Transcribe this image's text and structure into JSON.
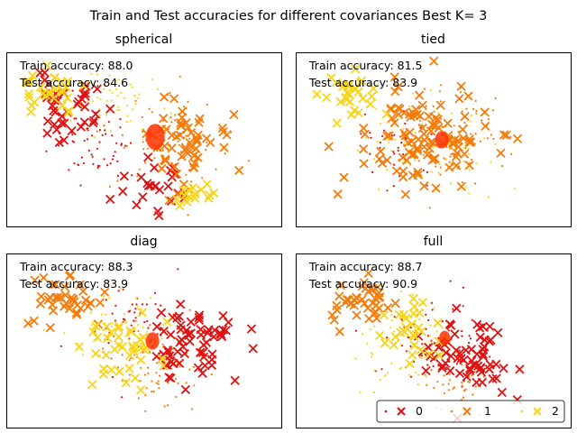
{
  "title": "Train and Test accuracies for different covariances Best K= 3",
  "colors": {
    "class_0": "#e01010",
    "class_1": "#f57c0a",
    "class_2": "#f7d418",
    "ellipse": "#ff3300"
  },
  "legend": {
    "entries": [
      {
        "label": "0",
        "class": 0
      },
      {
        "label": "1",
        "class": 1
      },
      {
        "label": "2",
        "class": 2
      }
    ]
  },
  "chart_data": [
    {
      "type": "scatter",
      "title": "spherical",
      "train_accuracy_label": "Train accuracy: 88.0",
      "test_accuracy_label": "Test accuracy: 84.6",
      "train_accuracy": 88.0,
      "test_accuracy": 84.6,
      "xlim": [
        0,
        10
      ],
      "ylim": [
        0,
        6
      ],
      "clusters": [
        {
          "class": 0,
          "center": [
            2.3,
            4.1
          ],
          "spread": [
            1.2,
            0.9
          ],
          "count": 40,
          "seed": 11
        },
        {
          "class": 0,
          "center": [
            5.2,
            1.4
          ],
          "spread": [
            1.1,
            0.7
          ],
          "count": 25,
          "seed": 12
        },
        {
          "class": 1,
          "center": [
            6.3,
            2.9
          ],
          "spread": [
            1.4,
            1.2
          ],
          "count": 55,
          "seed": 13
        },
        {
          "class": 2,
          "center": [
            1.6,
            4.6
          ],
          "spread": [
            0.9,
            0.7
          ],
          "count": 30,
          "seed": 14
        },
        {
          "class": 2,
          "center": [
            6.8,
            1.1
          ],
          "spread": [
            0.6,
            0.5
          ],
          "count": 15,
          "seed": 15
        }
      ],
      "test_points": [
        {
          "class": 0,
          "center": [
            3.2,
            2.8
          ],
          "spread": [
            1.3,
            1.2
          ],
          "count": 60,
          "seed": 21
        },
        {
          "class": 1,
          "center": [
            5.8,
            3.0
          ],
          "spread": [
            1.6,
            1.3
          ],
          "count": 90,
          "seed": 22
        },
        {
          "class": 2,
          "center": [
            3.6,
            4.3
          ],
          "spread": [
            1.8,
            1.1
          ],
          "count": 60,
          "seed": 23
        }
      ],
      "ellipses": [
        {
          "center": [
            5.4,
            3.1
          ],
          "rx": 0.35,
          "ry": 0.45
        }
      ]
    },
    {
      "type": "scatter",
      "title": "tied",
      "train_accuracy_label": "Train accuracy: 81.5",
      "test_accuracy_label": "Test accuracy: 83.9",
      "train_accuracy": 81.5,
      "test_accuracy": 83.9,
      "xlim": [
        0,
        10
      ],
      "ylim": [
        0,
        6
      ],
      "clusters": [
        {
          "class": 1,
          "center": [
            4.6,
            3.1
          ],
          "spread": [
            2.0,
            1.4
          ],
          "count": 110,
          "seed": 31
        },
        {
          "class": 2,
          "center": [
            2.1,
            4.6
          ],
          "spread": [
            1.0,
            0.6
          ],
          "count": 30,
          "seed": 32
        }
      ],
      "test_points": [
        {
          "class": 0,
          "center": [
            4.0,
            2.8
          ],
          "spread": [
            1.3,
            1.2
          ],
          "count": 45,
          "seed": 41
        },
        {
          "class": 1,
          "center": [
            5.5,
            3.2
          ],
          "spread": [
            1.6,
            1.3
          ],
          "count": 90,
          "seed": 42
        },
        {
          "class": 2,
          "center": [
            5.0,
            2.5
          ],
          "spread": [
            2.2,
            1.6
          ],
          "count": 70,
          "seed": 43
        }
      ],
      "ellipses": [
        {
          "center": [
            5.3,
            3.0
          ],
          "rx": 0.25,
          "ry": 0.3
        }
      ]
    },
    {
      "type": "scatter",
      "title": "diag",
      "train_accuracy_label": "Train accuracy: 88.3",
      "test_accuracy_label": "Test accuracy: 83.9",
      "train_accuracy": 88.3,
      "test_accuracy": 83.9,
      "xlim": [
        0,
        10
      ],
      "ylim": [
        0,
        6
      ],
      "clusters": [
        {
          "class": 0,
          "center": [
            6.7,
            2.9
          ],
          "spread": [
            1.3,
            1.1
          ],
          "count": 65,
          "seed": 51
        },
        {
          "class": 1,
          "center": [
            2.4,
            4.4
          ],
          "spread": [
            1.1,
            0.8
          ],
          "count": 40,
          "seed": 52
        },
        {
          "class": 2,
          "center": [
            4.2,
            2.6
          ],
          "spread": [
            1.2,
            1.0
          ],
          "count": 40,
          "seed": 53
        }
      ],
      "test_points": [
        {
          "class": 0,
          "center": [
            4.5,
            3.7
          ],
          "spread": [
            1.6,
            1.3
          ],
          "count": 60,
          "seed": 61
        },
        {
          "class": 1,
          "center": [
            5.5,
            2.2
          ],
          "spread": [
            1.6,
            1.5
          ],
          "count": 80,
          "seed": 62
        },
        {
          "class": 2,
          "center": [
            4.0,
            3.5
          ],
          "spread": [
            1.4,
            1.1
          ],
          "count": 50,
          "seed": 63
        }
      ],
      "ellipses": [
        {
          "center": [
            5.3,
            3.0
          ],
          "rx": 0.25,
          "ry": 0.3
        }
      ]
    },
    {
      "type": "scatter",
      "title": "full",
      "train_accuracy_label": "Train accuracy: 88.7",
      "test_accuracy_label": "Test accuracy: 90.9",
      "train_accuracy": 88.7,
      "test_accuracy": 90.9,
      "xlim": [
        0,
        10
      ],
      "ylim": [
        0,
        6
      ],
      "clusters": [
        {
          "class": 0,
          "center": [
            6.2,
            2.5
          ],
          "spread": [
            1.4,
            1.2
          ],
          "count": 65,
          "seed": 71
        },
        {
          "class": 1,
          "center": [
            2.3,
            4.3
          ],
          "spread": [
            1.1,
            0.8
          ],
          "count": 40,
          "seed": 72
        },
        {
          "class": 2,
          "center": [
            4.2,
            3.3
          ],
          "spread": [
            1.0,
            0.9
          ],
          "count": 30,
          "seed": 73
        }
      ],
      "test_points": [
        {
          "class": 0,
          "center": [
            5.0,
            3.2
          ],
          "spread": [
            1.6,
            1.3
          ],
          "count": 60,
          "seed": 81
        },
        {
          "class": 1,
          "center": [
            5.8,
            1.8
          ],
          "spread": [
            1.4,
            1.2
          ],
          "count": 60,
          "seed": 82
        },
        {
          "class": 2,
          "center": [
            3.8,
            2.8
          ],
          "spread": [
            1.3,
            1.4
          ],
          "count": 55,
          "seed": 83
        }
      ],
      "ellipses": [
        {
          "center": [
            5.4,
            3.1
          ],
          "rx": 0.2,
          "ry": 0.25
        }
      ]
    }
  ]
}
